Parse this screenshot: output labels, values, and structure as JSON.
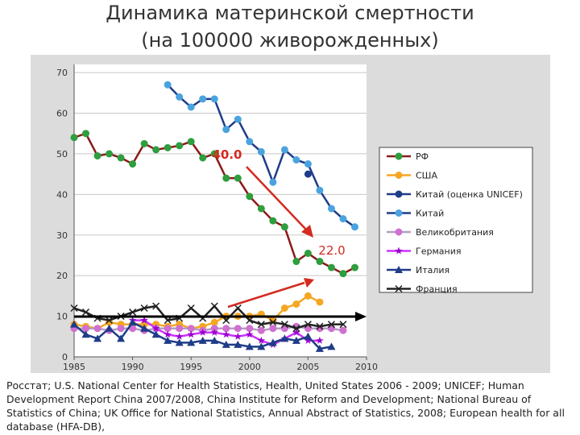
{
  "chart_data": {
    "type": "line",
    "title": "Динамика материнской смертности",
    "subtitle": "(на 100000 живорожденных)",
    "source": "Росстат; U.S. National Center for Health Statistics, Health, United States 2006 - 2009; UNICEF; Human Development Report China 2007/2008, China Institute for Reform and Development; National Bureau of Statistics of China; UK Office for National Statistics, Annual Abstract of Statistics, 2008; European health for all database (HFA-DB),",
    "annotations": [
      "40.0",
      "22.0"
    ],
    "x": [
      1985,
      1986,
      1987,
      1988,
      1989,
      1990,
      1991,
      1992,
      1993,
      1994,
      1995,
      1996,
      1997,
      1998,
      1999,
      2000,
      2001,
      2002,
      2003,
      2004,
      2005,
      2006,
      2007,
      2008,
      2009
    ],
    "xlim": [
      1985,
      2010
    ],
    "xticks": [
      1985,
      1990,
      1995,
      2000,
      2005,
      2010
    ],
    "ylim": [
      0,
      72
    ],
    "yticks": [
      0,
      10,
      20,
      30,
      40,
      50,
      60,
      70
    ],
    "grid": true,
    "series": [
      {
        "name": "РФ",
        "color": "#8b1a1a",
        "marker_color": "#2e9e3e",
        "marker": "circle",
        "values": [
          54,
          55,
          49.5,
          50,
          49,
          47.5,
          52.5,
          51,
          51.5,
          52,
          53,
          49,
          50,
          44,
          44,
          39.5,
          36.5,
          33.5,
          32,
          23.5,
          25.5,
          23.5,
          22,
          20.5,
          22
        ]
      },
      {
        "name": "США",
        "color": "#f5a623",
        "marker_color": "#f5a623",
        "marker": "circle",
        "values": [
          8,
          7.5,
          7,
          8.5,
          8,
          8,
          8,
          8,
          7.5,
          8,
          7,
          7.5,
          8.5,
          10,
          10,
          10,
          10.5,
          9,
          12,
          13,
          15,
          13.5,
          null,
          null,
          null
        ]
      },
      {
        "name": "Китай (оценка UNICEF)",
        "color": "#1f3c88",
        "marker_color": "#1f3c88",
        "marker": "circle",
        "values": [
          null,
          null,
          null,
          null,
          null,
          null,
          null,
          null,
          null,
          null,
          null,
          null,
          null,
          null,
          null,
          null,
          null,
          null,
          null,
          null,
          45,
          null,
          null,
          null,
          null
        ]
      },
      {
        "name": "Китай",
        "color": "#1f3c88",
        "marker_color": "#4aa3df",
        "marker": "circle",
        "values": [
          null,
          null,
          null,
          null,
          null,
          null,
          null,
          null,
          67,
          64,
          61.5,
          63.5,
          63.5,
          56,
          58.5,
          53,
          50.5,
          43,
          51,
          48.5,
          47.5,
          41,
          36.5,
          34,
          32
        ]
      },
      {
        "name": "Великобритания",
        "color": "#b0a0c0",
        "marker_color": "#d070d0",
        "marker": "circle",
        "values": [
          7,
          7,
          7,
          6.5,
          7,
          7,
          6.5,
          7,
          7,
          7,
          7,
          6.5,
          7,
          7,
          7,
          7,
          6.5,
          7,
          7,
          7.5,
          7,
          7,
          7,
          6.5,
          null
        ]
      },
      {
        "name": "Германия",
        "color": "#cc33ff",
        "marker_color": "#9900cc",
        "marker": "star",
        "values": [
          null,
          null,
          null,
          null,
          null,
          9,
          9,
          7,
          5.5,
          5,
          5.5,
          6,
          6,
          5.5,
          5,
          5.5,
          4,
          3,
          4.5,
          6,
          4,
          4,
          null,
          null,
          null
        ]
      },
      {
        "name": "Италия",
        "color": "#1f3c88",
        "marker_color": "#1f3c88",
        "marker": "triangle",
        "values": [
          8,
          5.5,
          4.5,
          7,
          4.5,
          8.5,
          7,
          5.5,
          4,
          3.5,
          3.5,
          4,
          4,
          3,
          3,
          2.5,
          2.5,
          3.5,
          4.5,
          4,
          5,
          2,
          2.5,
          null,
          null
        ]
      },
      {
        "name": "Франция",
        "color": "#222222",
        "marker_color": "#222222",
        "marker": "x",
        "values": [
          12,
          11,
          9.5,
          9,
          10,
          11,
          12,
          12.5,
          9,
          9.5,
          12,
          9.5,
          12.5,
          9,
          12,
          9,
          8,
          8.5,
          8,
          7,
          8,
          7.5,
          8,
          8,
          null
        ]
      }
    ]
  }
}
